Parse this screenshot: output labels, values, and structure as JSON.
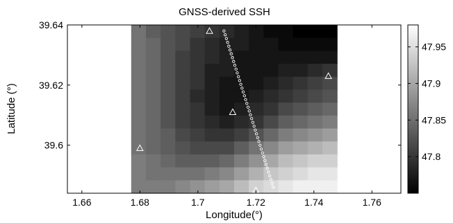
{
  "chart_data": {
    "type": "heatmap",
    "title": "GNSS-derived SSH",
    "xlabel": "Longitude(°)",
    "ylabel": "Latitude (°)",
    "xlim": [
      1.655,
      1.77
    ],
    "ylim": [
      39.584,
      39.64
    ],
    "x_ticks": [
      "1.66",
      "1.68",
      "1.7",
      "1.72",
      "1.74",
      "1.76"
    ],
    "y_ticks": [
      "39.6",
      "39.62",
      "39.64"
    ],
    "grid": false,
    "colorbar": {
      "min": 47.75,
      "max": 47.98,
      "ticks": [
        "47.8",
        "47.85",
        "47.9",
        "47.95"
      ],
      "colormap": "gray"
    },
    "grid_extent": {
      "lon": [
        1.677,
        1.748
      ],
      "lat": [
        39.584,
        39.64
      ]
    },
    "grid_values": [
      [
        47.86,
        47.84,
        47.83,
        47.82,
        47.81,
        47.8,
        47.79,
        47.78,
        47.77,
        47.76,
        47.76,
        47.75,
        47.75,
        47.75
      ],
      [
        47.86,
        47.85,
        47.83,
        47.82,
        47.8,
        47.79,
        47.78,
        47.78,
        47.77,
        47.77,
        47.76,
        47.76,
        47.76,
        47.76
      ],
      [
        47.86,
        47.85,
        47.83,
        47.81,
        47.8,
        47.79,
        47.78,
        47.77,
        47.77,
        47.77,
        47.77,
        47.77,
        47.77,
        47.77
      ],
      [
        47.86,
        47.85,
        47.83,
        47.81,
        47.8,
        47.78,
        47.78,
        47.77,
        47.77,
        47.77,
        47.78,
        47.78,
        47.79,
        47.8
      ],
      [
        47.86,
        47.85,
        47.83,
        47.81,
        47.8,
        47.78,
        47.77,
        47.77,
        47.77,
        47.78,
        47.79,
        47.8,
        47.81,
        47.82
      ],
      [
        47.86,
        47.85,
        47.83,
        47.81,
        47.79,
        47.78,
        47.77,
        47.77,
        47.78,
        47.79,
        47.8,
        47.81,
        47.82,
        47.83
      ],
      [
        47.86,
        47.85,
        47.83,
        47.81,
        47.8,
        47.78,
        47.77,
        47.78,
        47.79,
        47.8,
        47.82,
        47.83,
        47.84,
        47.85
      ],
      [
        47.86,
        47.85,
        47.83,
        47.81,
        47.8,
        47.79,
        47.78,
        47.79,
        47.8,
        47.82,
        47.84,
        47.85,
        47.86,
        47.87
      ],
      [
        47.86,
        47.85,
        47.84,
        47.82,
        47.81,
        47.8,
        47.8,
        47.81,
        47.83,
        47.85,
        47.87,
        47.88,
        47.89,
        47.9
      ],
      [
        47.86,
        47.85,
        47.84,
        47.83,
        47.82,
        47.82,
        47.82,
        47.84,
        47.86,
        47.88,
        47.9,
        47.91,
        47.92,
        47.93
      ],
      [
        47.87,
        47.86,
        47.85,
        47.84,
        47.84,
        47.84,
        47.85,
        47.87,
        47.89,
        47.91,
        47.93,
        47.94,
        47.95,
        47.95
      ],
      [
        47.87,
        47.86,
        47.86,
        47.86,
        47.86,
        47.87,
        47.88,
        47.9,
        47.92,
        47.94,
        47.95,
        47.96,
        47.97,
        47.97
      ],
      [
        47.87,
        47.87,
        47.87,
        47.88,
        47.89,
        47.9,
        47.91,
        47.93,
        47.95,
        47.96,
        47.97,
        47.98,
        47.98,
        47.98
      ]
    ],
    "stations": [
      {
        "lon": 1.704,
        "lat": 39.638
      },
      {
        "lon": 1.745,
        "lat": 39.623
      },
      {
        "lon": 1.712,
        "lat": 39.611
      },
      {
        "lon": 1.68,
        "lat": 39.599
      },
      {
        "lon": 1.72,
        "lat": 39.585
      }
    ],
    "track": {
      "start": {
        "lon": 1.709,
        "lat": 39.638
      },
      "end": {
        "lon": 1.726,
        "lat": 39.586
      },
      "points": 42
    }
  }
}
